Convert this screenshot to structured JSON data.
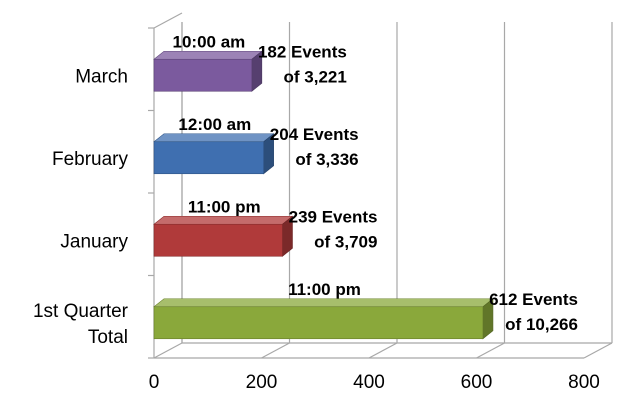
{
  "chart_data": {
    "type": "bar",
    "orientation": "horizontal",
    "style": "3d",
    "categories": [
      "1st Quarter Total",
      "January",
      "February",
      "March"
    ],
    "category_lines": [
      [
        "1st Quarter",
        "Total"
      ],
      [
        "January"
      ],
      [
        "February"
      ],
      [
        "March"
      ]
    ],
    "values": [
      612,
      239,
      204,
      182
    ],
    "colors": [
      "#8aa83b",
      "#b03a3a",
      "#3f6fb0",
      "#7b5a9e"
    ],
    "time_labels": [
      "11:00 pm",
      "11:00 pm",
      "12:00 am",
      "10:00 am"
    ],
    "event_labels": [
      [
        "612 Events",
        "of 10,266"
      ],
      [
        "239 Events",
        "of 3,709"
      ],
      [
        "204 Events",
        "of 3,336"
      ],
      [
        "182 Events",
        "of 3,221"
      ]
    ],
    "x_ticks": [
      0,
      200,
      400,
      600,
      800
    ],
    "xlim": [
      0,
      800
    ],
    "title": "",
    "xlabel": "",
    "ylabel": "",
    "grid": "vertical",
    "legend": "none"
  }
}
